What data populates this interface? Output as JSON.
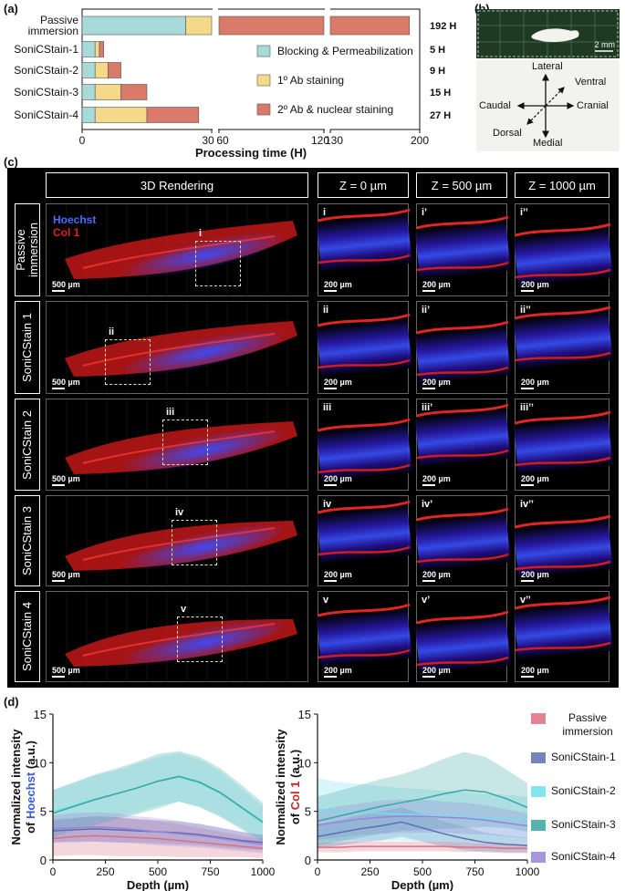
{
  "panel_a": {
    "letter": "(a)",
    "legend": [
      "Blocking & Permeabilization",
      "1º Ab staining",
      "2º Ab & nuclear staining"
    ],
    "colors": {
      "blocking": "#a8dada",
      "primary": "#f5d98a",
      "secondary": "#d97a6a"
    },
    "xlabel": "Processing time (H)",
    "xticks": [
      "0",
      "30",
      "60",
      "120",
      "130",
      "200"
    ],
    "rows": [
      {
        "name": "Passive immersion",
        "total_label": "192 H",
        "segments": [
          24,
          24,
          144
        ]
      },
      {
        "name": "SoniCStain-1",
        "total_label": "5 H",
        "segments": [
          3,
          1,
          1
        ]
      },
      {
        "name": "SoniCStain-2",
        "total_label": "9 H",
        "segments": [
          3,
          3,
          3
        ]
      },
      {
        "name": "SoniCStain-3",
        "total_label": "15 H",
        "segments": [
          3,
          6,
          6
        ]
      },
      {
        "name": "SoniCStain-4",
        "total_label": "27 H",
        "segments": [
          3,
          12,
          12
        ]
      }
    ]
  },
  "panel_b": {
    "letter": "(b)",
    "scale": "2 mm",
    "axes": {
      "top": "Lateral",
      "bottom": "Medial",
      "left": "Caudal",
      "right": "Cranial",
      "up_right": "Ventral",
      "down_left": "Dorsal"
    }
  },
  "panel_c": {
    "letter": "(c)",
    "headers": [
      "3D Rendering",
      "Z = 0 µm",
      "Z = 500 µm",
      "Z = 1000 µm"
    ],
    "channels": {
      "blue": "Hoechst",
      "red": "Col 1"
    },
    "scale_3d": "500 µm",
    "scale_slice": "200 µm",
    "rows": [
      {
        "label": "Passive immersion",
        "roman": [
          "i",
          "i’",
          "i’’"
        ]
      },
      {
        "label": "SoniCStain 1",
        "roman": [
          "ii",
          "ii’",
          "ii’’"
        ]
      },
      {
        "label": "SoniCStain 2",
        "roman": [
          "iii",
          "iii’",
          "iii’’"
        ]
      },
      {
        "label": "SoniCStain 3",
        "roman": [
          "iv",
          "iv’",
          "iv’’"
        ]
      },
      {
        "label": "SoniCStain 4",
        "roman": [
          "v",
          "v’",
          "v’’"
        ]
      }
    ]
  },
  "panel_d": {
    "letter": "(d)",
    "legend": [
      {
        "name": "Passive immersion",
        "color": "#d97080"
      },
      {
        "name": "SoniCStain-1",
        "color": "#5c6eb0"
      },
      {
        "name": "SoniCStain-2",
        "color": "#6fe0ec"
      },
      {
        "name": "SoniCStain-3",
        "color": "#3aa6a0"
      },
      {
        "name": "SoniCStain-4",
        "color": "#9a82d8"
      }
    ]
  },
  "chart_data": [
    {
      "type": "bar",
      "stacked": true,
      "orientation": "horizontal",
      "categories": [
        "Passive immersion",
        "SoniCStain-1",
        "SoniCStain-2",
        "SoniCStain-3",
        "SoniCStain-4"
      ],
      "series": [
        {
          "name": "Blocking & Permeabilization",
          "values": [
            24,
            3,
            3,
            3,
            3
          ]
        },
        {
          "name": "1º Ab staining",
          "values": [
            24,
            1,
            3,
            6,
            12
          ]
        },
        {
          "name": "2º Ab & nuclear staining",
          "values": [
            144,
            1,
            3,
            6,
            12
          ]
        }
      ],
      "xlabel": "Processing time (H)",
      "broken_axis": [
        [
          30,
          60
        ],
        [
          120,
          130
        ]
      ],
      "xlim": [
        0,
        200
      ]
    },
    {
      "type": "line",
      "xlabel": "Depth (µm)",
      "ylabel": "Normalized intensity of Hoechst (a.u.)",
      "xlim": [
        0,
        1000
      ],
      "ylim": [
        0,
        15
      ],
      "xticks": [
        0,
        250,
        500,
        750,
        1000
      ],
      "yticks": [
        0,
        5,
        10,
        15
      ],
      "x": [
        0,
        100,
        200,
        300,
        400,
        500,
        600,
        700,
        800,
        900,
        1000
      ],
      "series": [
        {
          "name": "Passive immersion",
          "values": [
            2.2,
            2.4,
            2.5,
            2.4,
            2.3,
            2.2,
            2.0,
            1.8,
            1.6,
            1.4,
            1.2
          ],
          "spread": [
            1.8,
            1.9,
            2.0,
            2.0,
            1.9,
            1.8,
            1.7,
            1.5,
            1.3,
            1.1,
            1.0
          ]
        },
        {
          "name": "SoniCStain-1",
          "values": [
            3.0,
            3.1,
            3.2,
            3.1,
            3.0,
            2.9,
            2.8,
            2.6,
            2.3,
            2.0,
            1.8
          ],
          "spread": [
            1.2,
            1.2,
            1.3,
            1.3,
            1.2,
            1.2,
            1.2,
            1.1,
            1.0,
            0.9,
            0.8
          ]
        },
        {
          "name": "SoniCStain-2",
          "values": [
            5.0,
            5.6,
            6.3,
            6.8,
            7.4,
            8.1,
            8.5,
            7.9,
            6.8,
            5.3,
            3.8
          ],
          "spread": [
            2.2,
            2.3,
            2.4,
            2.4,
            2.5,
            2.5,
            2.5,
            2.4,
            2.3,
            2.0,
            1.8
          ]
        },
        {
          "name": "SoniCStain-3",
          "values": [
            4.8,
            5.5,
            6.2,
            6.8,
            7.4,
            8.1,
            8.6,
            8.0,
            6.9,
            5.4,
            3.9
          ],
          "spread": [
            2.4,
            2.5,
            2.6,
            2.6,
            2.7,
            2.8,
            2.6,
            2.6,
            2.5,
            2.3,
            2.0
          ]
        },
        {
          "name": "SoniCStain-4",
          "values": [
            3.2,
            3.3,
            3.4,
            3.3,
            3.1,
            2.9,
            2.7,
            2.5,
            2.2,
            1.9,
            1.6
          ],
          "spread": [
            1.4,
            1.5,
            1.5,
            1.5,
            1.4,
            1.4,
            1.3,
            1.2,
            1.1,
            1.0,
            0.9
          ]
        }
      ]
    },
    {
      "type": "line",
      "xlabel": "Depth (µm)",
      "ylabel": "Normalized intensity of Col 1 (a.u.)",
      "xlim": [
        0,
        1000
      ],
      "ylim": [
        0,
        15
      ],
      "xticks": [
        0,
        250,
        500,
        750,
        1000
      ],
      "yticks": [
        0,
        5,
        10,
        15
      ],
      "x": [
        0,
        100,
        200,
        300,
        400,
        500,
        600,
        700,
        800,
        900,
        1000
      ],
      "series": [
        {
          "name": "Passive immersion",
          "values": [
            1.3,
            1.3,
            1.4,
            1.4,
            1.4,
            1.4,
            1.4,
            1.3,
            1.3,
            1.2,
            1.2
          ],
          "spread": [
            0.5,
            0.5,
            0.5,
            0.5,
            0.5,
            0.5,
            0.5,
            0.5,
            0.4,
            0.4,
            0.4
          ]
        },
        {
          "name": "SoniCStain-1",
          "values": [
            2.4,
            2.8,
            3.2,
            3.5,
            3.9,
            3.3,
            2.7,
            2.2,
            1.8,
            1.6,
            1.5
          ],
          "spread": [
            1.2,
            1.3,
            1.4,
            1.5,
            1.5,
            1.4,
            1.3,
            1.2,
            1.0,
            0.9,
            0.8
          ]
        },
        {
          "name": "SoniCStain-2",
          "values": [
            5.2,
            5.0,
            4.9,
            4.8,
            4.7,
            4.6,
            4.5,
            4.4,
            4.3,
            4.2,
            4.1
          ],
          "spread": [
            3.2,
            3.0,
            2.9,
            2.8,
            2.7,
            2.7,
            2.6,
            2.6,
            2.5,
            2.5,
            2.4
          ]
        },
        {
          "name": "SoniCStain-3",
          "values": [
            4.0,
            4.5,
            5.0,
            5.5,
            5.9,
            6.3,
            6.8,
            7.2,
            7.0,
            6.3,
            5.4
          ],
          "spread": [
            2.5,
            2.6,
            2.7,
            2.8,
            2.9,
            3.2,
            3.6,
            3.9,
            3.6,
            3.0,
            2.5
          ]
        },
        {
          "name": "SoniCStain-4",
          "values": [
            3.6,
            3.9,
            4.2,
            4.4,
            4.5,
            4.5,
            4.4,
            4.3,
            4.1,
            3.8,
            3.5
          ],
          "spread": [
            1.5,
            1.6,
            1.6,
            1.7,
            1.7,
            1.7,
            1.6,
            1.6,
            1.5,
            1.4,
            1.3
          ]
        }
      ]
    }
  ]
}
